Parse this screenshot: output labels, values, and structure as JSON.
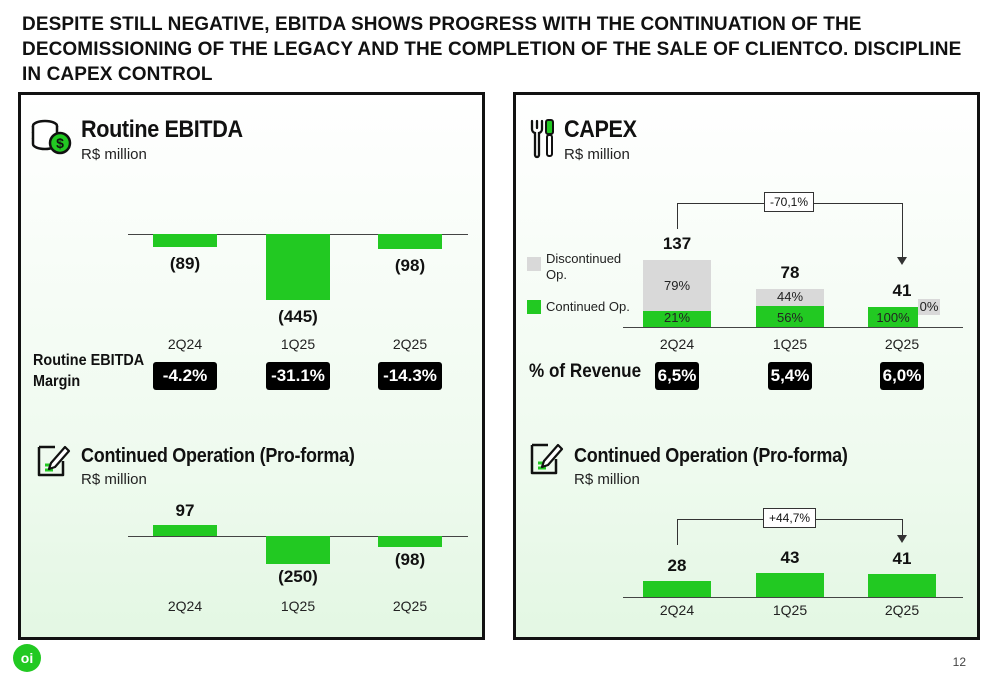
{
  "header": {
    "title": "DESPITE STILL NEGATIVE, EBITDA SHOWS PROGRESS WITH THE CONTINUATION OF THE DECOMISSIONING OF THE LEGACY AND THE COMPLETION OF THE SALE OF CLIENTCO. DISCIPLINE IN CAPEX CONTROL"
  },
  "left": {
    "title": "Routine EBITDA",
    "unit": "R$ million",
    "margin_label_line1": "Routine EBITDA",
    "margin_label_line2": "Margin",
    "sub_title": "Continued Operation (Pro-forma)",
    "sub_unit": "R$ million"
  },
  "right": {
    "title": "CAPEX",
    "unit": "R$ million",
    "legend_discontinued_line1": "Discontinued",
    "legend_discontinued_line2": "Op.",
    "legend_continued": "Continued Op.",
    "revenue_label": "% of Revenue",
    "variation": "-70,1%",
    "sub_title": "Continued Operation (Pro-forma)",
    "sub_unit": "R$ million",
    "sub_variation": "+44,7%"
  },
  "colors": {
    "green": "#22c922",
    "grey": "#d9d9d9",
    "pill": "#000000"
  },
  "icons": {
    "ebitda": "coins-dollar-icon",
    "capex": "tools-icon",
    "continued_left": "document-pen-icon",
    "continued_right": "document-pen-icon",
    "logo": "oi-logo"
  },
  "page_number": "12",
  "chart_data": [
    {
      "type": "bar",
      "title": "Routine EBITDA",
      "categories": [
        "2Q24",
        "1Q25",
        "2Q25"
      ],
      "values": [
        -89,
        -445,
        -98
      ],
      "value_labels": [
        "(89)",
        "(445)",
        "(98)"
      ],
      "margin": [
        "-4.2%",
        "-31.1%",
        "-14.3%"
      ]
    },
    {
      "type": "bar",
      "title": "Continued Operation (Pro-forma)",
      "categories": [
        "2Q24",
        "1Q25",
        "2Q25"
      ],
      "values": [
        97,
        -250,
        -98
      ],
      "value_labels": [
        "97",
        "(250)",
        "(98)"
      ]
    },
    {
      "type": "bar",
      "title": "CAPEX",
      "categories": [
        "2Q24",
        "1Q25",
        "2Q25"
      ],
      "totals": [
        137,
        78,
        41
      ],
      "series": [
        {
          "name": "Continued Op.",
          "shares": [
            "21%",
            "56%",
            "100%"
          ]
        },
        {
          "name": "Discontinued Op.",
          "shares": [
            "79%",
            "44%",
            "0%"
          ]
        }
      ],
      "pct_revenue": [
        "6,5%",
        "5,4%",
        "6,0%"
      ]
    },
    {
      "type": "bar",
      "title": "Continued Operation (Pro-forma)",
      "categories": [
        "2Q24",
        "1Q25",
        "2Q25"
      ],
      "values": [
        28,
        43,
        41
      ],
      "value_labels": [
        "28",
        "43",
        "41"
      ]
    }
  ]
}
